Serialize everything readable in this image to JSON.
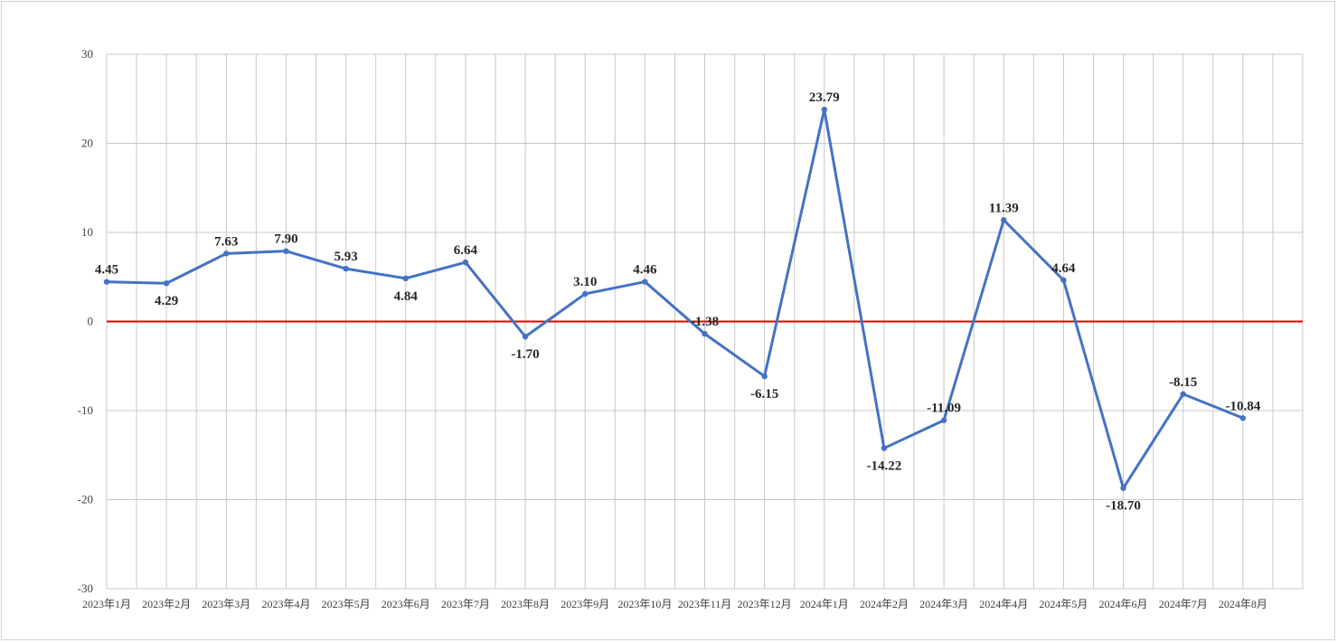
{
  "chart_data": {
    "type": "line",
    "title": "",
    "xlabel": "",
    "ylabel": "",
    "ylim": [
      -30,
      30
    ],
    "y_ticks": [
      30,
      20,
      10,
      0,
      -10,
      -20,
      -30
    ],
    "grid": "vertical and horizontal gridlines on",
    "categories": [
      "2023年1月",
      "2023年2月",
      "2023年3月",
      "2023年4月",
      "2023年5月",
      "2023年6月",
      "2023年7月",
      "2023年8月",
      "2023年9月",
      "2023年10月",
      "2023年11月",
      "2023年12月",
      "2024年1月",
      "2024年2月",
      "2024年3月",
      "2024年4月",
      "2024年5月",
      "2024年6月",
      "2024年7月",
      "2024年8月"
    ],
    "series": [
      {
        "values": [
          4.45,
          4.29,
          7.63,
          7.9,
          5.93,
          4.84,
          6.64,
          -1.7,
          3.1,
          4.46,
          -1.38,
          -6.15,
          23.79,
          -14.22,
          -11.09,
          11.39,
          4.64,
          -18.7,
          -8.15,
          -10.84
        ],
        "labels": [
          "4.45",
          "4.29",
          "7.63",
          "7.90",
          "5.93",
          "4.84",
          "6.64",
          "-1.70",
          "3.10",
          "4.46",
          "-1.38",
          "-6.15",
          "23.79",
          "-14.22",
          "-11.09",
          "11.39",
          "4.64",
          "-18.70",
          "-8.15",
          "-10.84"
        ],
        "color": "#4472c4"
      }
    ],
    "reference_line": {
      "value": 0,
      "color": "#e00000"
    },
    "colors": {
      "grid": "#c8c8c8",
      "axis_text": "#404040",
      "label_text": "#262626"
    }
  }
}
